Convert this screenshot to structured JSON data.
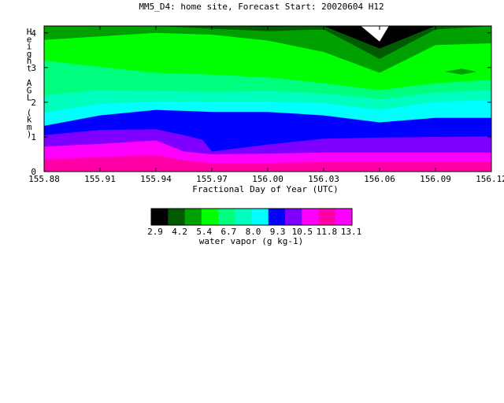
{
  "chart_data": {
    "type": "heatmap",
    "subtype": "filled-contour",
    "title": "MM5_D4: home site,  Forecast Start: 20020604 H12",
    "xlabel": "Fractional Day of Year (UTC)",
    "ylabel": "Height AGL (km)",
    "xlim": [
      155.88,
      156.12
    ],
    "ylim": [
      0,
      4.2
    ],
    "x_ticks": [
      "155.88",
      "155.91",
      "155.94",
      "155.97",
      "156.00",
      "156.03",
      "156.06",
      "156.09",
      "156.12"
    ],
    "x_tick_values": [
      155.88,
      155.91,
      155.94,
      155.97,
      156.0,
      156.03,
      156.06,
      156.09,
      156.12
    ],
    "y_ticks": [
      "0",
      "1",
      "2",
      "3",
      "4"
    ],
    "y_tick_values": [
      0,
      1,
      2,
      3,
      4
    ],
    "colorbar": {
      "label": "water vapor (g kg-1)",
      "tick_labels": [
        "2.9",
        "4.2",
        "5.4",
        "6.7",
        "8.0",
        "9.3",
        "10.5",
        "11.8",
        "13.1"
      ],
      "colors": [
        "#000000",
        "#005a00",
        "#00a000",
        "#00ff00",
        "#00ff7f",
        "#00ffbf",
        "#00ffff",
        "#0000ff",
        "#8000ff",
        "#ff00ff",
        "#ff00a8",
        "#ff00ff"
      ]
    },
    "bands": [
      {
        "color": "#ff00a8",
        "range": [
          12.4,
          13.1
        ],
        "x": [
          155.88,
          155.91,
          155.94,
          155.955,
          155.97,
          156.0,
          156.03,
          156.06,
          156.09,
          156.12
        ],
        "top": [
          0.35,
          0.42,
          0.48,
          0.32,
          0.25,
          0.25,
          0.28,
          0.28,
          0.28,
          0.28
        ]
      },
      {
        "color": "#ff00ff",
        "range": [
          11.8,
          12.4
        ],
        "x": [
          155.88,
          155.91,
          155.94,
          155.955,
          155.97,
          156.0,
          156.03,
          156.06,
          156.09,
          156.12
        ],
        "top": [
          0.72,
          0.8,
          0.9,
          0.58,
          0.5,
          0.52,
          0.55,
          0.55,
          0.55,
          0.55
        ]
      },
      {
        "color": "#8000ff",
        "range": [
          10.5,
          11.8
        ],
        "x": [
          155.88,
          155.91,
          155.94,
          155.955,
          155.965,
          155.97,
          156.0,
          156.03,
          156.06,
          156.09,
          156.12
        ],
        "top": [
          1.05,
          1.2,
          1.22,
          1.05,
          0.92,
          0.58,
          0.78,
          0.95,
          0.98,
          1.0,
          1.02
        ]
      },
      {
        "color": "#0000ff",
        "range": [
          9.3,
          10.5
        ],
        "x": [
          155.88,
          155.91,
          155.94,
          155.97,
          156.0,
          156.03,
          156.06,
          156.09,
          156.12
        ],
        "top": [
          1.32,
          1.62,
          1.78,
          1.72,
          1.72,
          1.62,
          1.42,
          1.55,
          1.55
        ]
      },
      {
        "color": "#00ffff",
        "range": [
          8.0,
          9.3
        ],
        "x": [
          155.88,
          155.91,
          155.94,
          155.97,
          156.0,
          156.03,
          156.06,
          156.09,
          156.12
        ],
        "top": [
          1.7,
          1.95,
          2.02,
          2.02,
          2.02,
          1.98,
          1.78,
          2.02,
          2.05
        ]
      },
      {
        "color": "#00ffbf",
        "range": [
          7.3,
          8.0
        ],
        "x": [
          155.88,
          155.91,
          155.94,
          155.97,
          156.0,
          156.03,
          156.06,
          156.09,
          156.12
        ],
        "top": [
          2.2,
          2.35,
          2.32,
          2.3,
          2.32,
          2.25,
          2.1,
          2.28,
          2.35
        ]
      },
      {
        "color": "#00ff7f",
        "range": [
          6.7,
          7.3
        ],
        "x": [
          155.88,
          155.91,
          155.94,
          155.97,
          156.0,
          156.03,
          156.06,
          156.09,
          156.12
        ],
        "top": [
          3.2,
          3.02,
          2.85,
          2.8,
          2.72,
          2.55,
          2.35,
          2.55,
          2.65
        ]
      },
      {
        "color": "#00ff00",
        "range": [
          5.4,
          6.7
        ],
        "x": [
          155.88,
          155.91,
          155.94,
          155.97,
          156.0,
          156.03,
          156.06,
          156.09,
          156.12
        ],
        "top": [
          3.8,
          3.9,
          4.0,
          3.95,
          3.78,
          3.45,
          2.85,
          3.65,
          3.7
        ]
      },
      {
        "color": "#00a000",
        "range": [
          4.2,
          5.4
        ],
        "x": [
          155.88,
          155.91,
          155.94,
          155.97,
          156.0,
          156.03,
          156.06,
          156.09,
          156.12
        ],
        "top": [
          4.2,
          4.2,
          4.2,
          4.12,
          4.05,
          4.1,
          3.25,
          4.1,
          4.2
        ]
      },
      {
        "color": "#005a00",
        "range": [
          3.5,
          4.2
        ],
        "x": [
          155.88,
          155.91,
          155.94,
          155.97,
          156.0,
          156.03,
          156.06,
          156.09,
          156.12
        ],
        "top": [
          4.2,
          4.2,
          4.2,
          4.2,
          4.18,
          4.2,
          3.55,
          4.2,
          4.2
        ]
      },
      {
        "color": "#000000",
        "range": [
          2.9,
          3.5
        ],
        "x": [
          155.88,
          156.0,
          156.05,
          156.06,
          156.065,
          156.12
        ],
        "top": [
          4.2,
          4.2,
          4.2,
          3.75,
          4.2,
          4.2
        ]
      }
    ],
    "patches": [
      {
        "color": "#00a000",
        "x": [
          156.095,
          156.104,
          156.112,
          156.104
        ],
        "y": [
          2.88,
          2.8,
          2.88,
          2.97
        ]
      }
    ],
    "grid": false,
    "legend": "colorbar-below"
  }
}
